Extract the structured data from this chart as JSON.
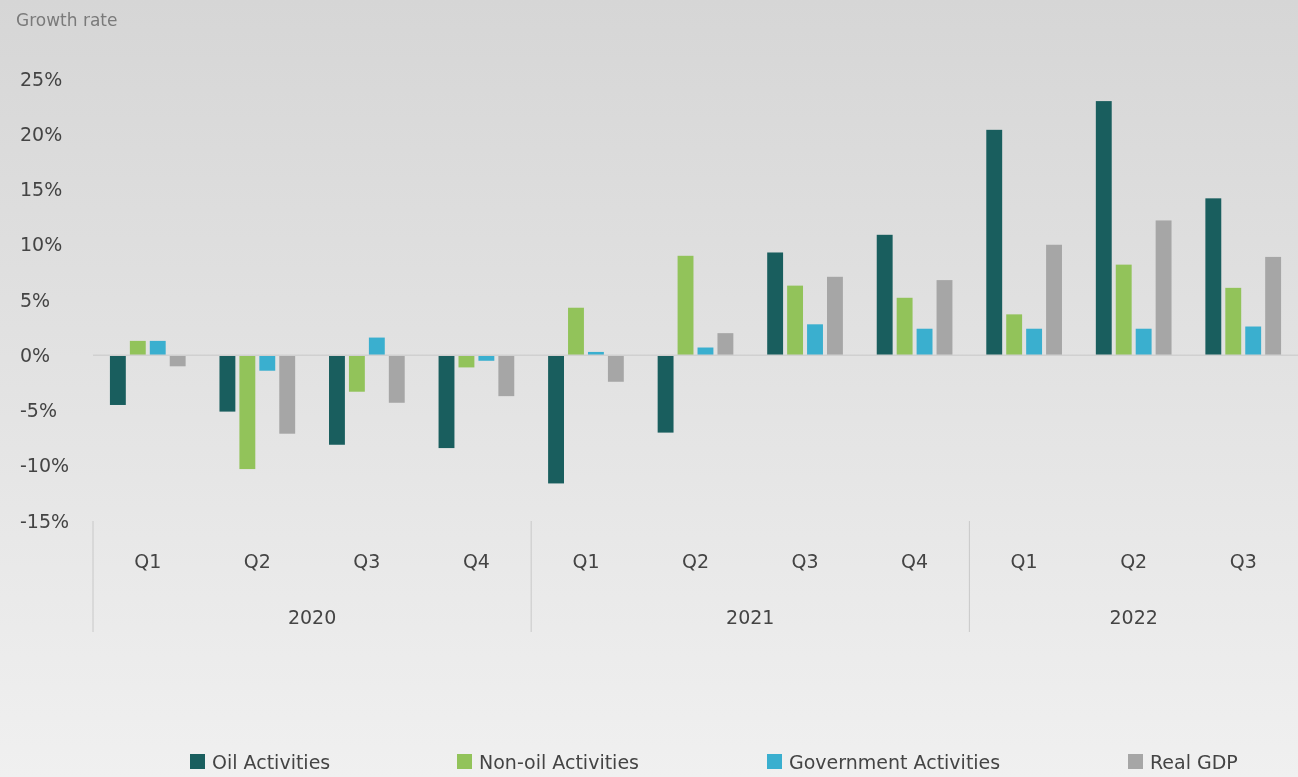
{
  "chart_data": {
    "type": "bar",
    "ylabel": "Growth rate",
    "categories": [
      "Q1",
      "Q2",
      "Q3",
      "Q4",
      "Q1",
      "Q2",
      "Q3",
      "Q4",
      "Q1",
      "Q2",
      "Q3"
    ],
    "annotations": [
      "2020",
      "2021",
      "2022"
    ],
    "series": [
      {
        "name": "Oil Activities",
        "color": "#195e5e",
        "values": [
          -4.5,
          -5.1,
          -8.1,
          -8.4,
          -11.6,
          -7.0,
          9.3,
          10.9,
          20.4,
          23.0,
          14.2
        ]
      },
      {
        "name": "Non-oil Activities",
        "color": "#92c35a",
        "values": [
          1.3,
          -10.3,
          -3.3,
          -1.1,
          4.3,
          9.0,
          6.3,
          5.2,
          3.7,
          8.2,
          6.1
        ]
      },
      {
        "name": "Government Activities",
        "color": "#3aafcf",
        "values": [
          1.3,
          -1.4,
          1.6,
          -0.5,
          0.3,
          0.7,
          2.8,
          2.4,
          2.4,
          2.4,
          2.6
        ]
      },
      {
        "name": "Real GDP",
        "color": "#a6a6a6",
        "values": [
          -1.0,
          -7.1,
          -4.3,
          -3.7,
          -2.4,
          2.0,
          7.1,
          6.8,
          10.0,
          12.2,
          8.9
        ]
      }
    ],
    "ylim": [
      -15,
      25
    ],
    "yticks": [
      {
        "value": -15,
        "label": "-15%"
      },
      {
        "value": -10,
        "label": "-10%"
      },
      {
        "value": -5,
        "label": "-5%"
      },
      {
        "value": 0,
        "label": "0%"
      },
      {
        "value": 5,
        "label": "5%"
      },
      {
        "value": 10,
        "label": "10%"
      },
      {
        "value": 15,
        "label": "15%"
      },
      {
        "value": 20,
        "label": "20%"
      },
      {
        "value": 25,
        "label": "25%"
      }
    ],
    "legend": "bottom"
  }
}
